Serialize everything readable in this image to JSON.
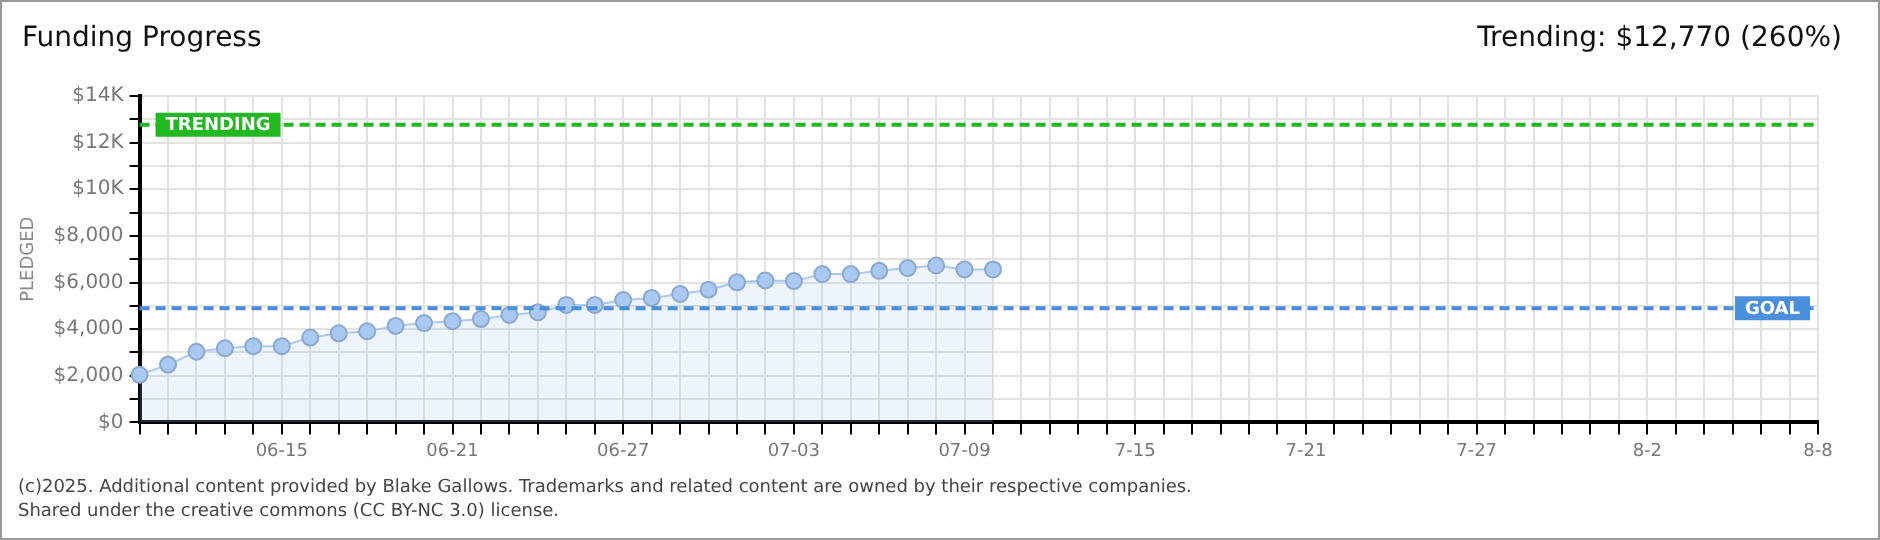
{
  "chart_data": {
    "type": "area",
    "title": "Funding Progress",
    "ylabel": "PLEDGED",
    "categories": [
      null,
      null,
      null,
      null,
      null,
      "06-15",
      null,
      null,
      null,
      null,
      null,
      "06-21",
      null,
      null,
      null,
      null,
      null,
      "06-27",
      null,
      null,
      null,
      null,
      null,
      "07-03",
      null,
      null,
      null,
      null,
      null,
      "07-09",
      null,
      null,
      null,
      null,
      null,
      "7-15",
      null,
      null,
      null,
      null,
      null,
      "7-21",
      null,
      null,
      null,
      null,
      null,
      "7-27",
      null,
      null,
      null,
      null,
      null,
      "8-2",
      null,
      null,
      null,
      null,
      null,
      "8-8"
    ],
    "series": [
      {
        "color": "#a9c9f2",
        "values": [
          2040,
          2480,
          3030,
          3180,
          3270,
          3270,
          3640,
          3820,
          3910,
          4140,
          4260,
          4340,
          4430,
          4610,
          4720,
          5040,
          5040,
          5250,
          5340,
          5510,
          5690,
          6010,
          6090,
          6060,
          6360,
          6360,
          6500,
          6620,
          6730,
          6560,
          6560,
          null,
          null,
          null,
          null,
          null,
          null,
          null,
          null,
          null,
          null,
          null,
          null,
          null,
          null,
          null,
          null,
          null,
          null,
          null,
          null,
          null,
          null,
          null,
          null,
          null,
          null,
          null,
          null,
          null
        ]
      }
    ],
    "ylim": [
      0,
      14000
    ],
    "yticks": [
      {
        "value": 0,
        "label": "$0"
      },
      {
        "value": 1000,
        "label": null
      },
      {
        "value": 2000,
        "label": "$2,000"
      },
      {
        "value": 3000,
        "label": null
      },
      {
        "value": 4000,
        "label": "$4,000"
      },
      {
        "value": 5000,
        "label": null
      },
      {
        "value": 6000,
        "label": "$6,000"
      },
      {
        "value": 7000,
        "label": null
      },
      {
        "value": 8000,
        "label": "$8,000"
      },
      {
        "value": 9000,
        "label": null
      },
      {
        "value": 10000,
        "label": "$10K"
      },
      {
        "value": 11000,
        "label": null
      },
      {
        "value": 12000,
        "label": "$12K"
      },
      {
        "value": 13000,
        "label": null
      },
      {
        "value": 14000,
        "label": "$14K"
      }
    ],
    "grid": true,
    "legend": false,
    "marker": "circle",
    "ref_lines": [
      {
        "axis": "y",
        "value": 12770,
        "label": "TRENDING",
        "color": "#22b822",
        "line_style": "dashed"
      },
      {
        "axis": "y",
        "value": 4900,
        "label": "GOAL",
        "color": "#4a8fdc",
        "line_style": "dashed"
      }
    ],
    "annotations": [
      "Trending: $12,770 (260%)",
      "(c)2025. Additional content provided by Blake Gallows. Trademarks and related content are owned by their respective companies.",
      "Shared under the creative commons (CC BY-NC 3.0) license."
    ]
  }
}
